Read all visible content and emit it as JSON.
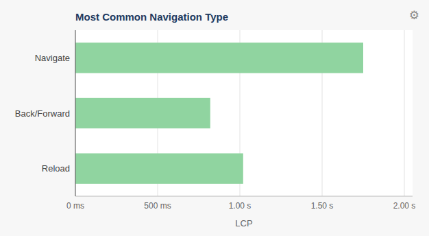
{
  "chart_data": {
    "type": "bar",
    "orientation": "horizontal",
    "title": "Most Common Navigation Type",
    "x_label": "LCP",
    "annotations": [
      "⚙"
    ],
    "categories": [
      "Reload",
      "Back/Forward",
      "Navigate"
    ],
    "values": [
      1.02,
      0.82,
      1.75
    ],
    "color": "#90d4a0",
    "xlim": [
      0,
      2.05
    ],
    "xticks": [
      {
        "value": 0,
        "label": "0 ms"
      },
      {
        "value": 0.5,
        "label": "500 ms"
      },
      {
        "value": 1.0,
        "label": "1.00 s"
      },
      {
        "value": 1.5,
        "label": "1.50 s"
      },
      {
        "value": 2.0,
        "label": "2.00 s"
      }
    ],
    "grid": true
  }
}
